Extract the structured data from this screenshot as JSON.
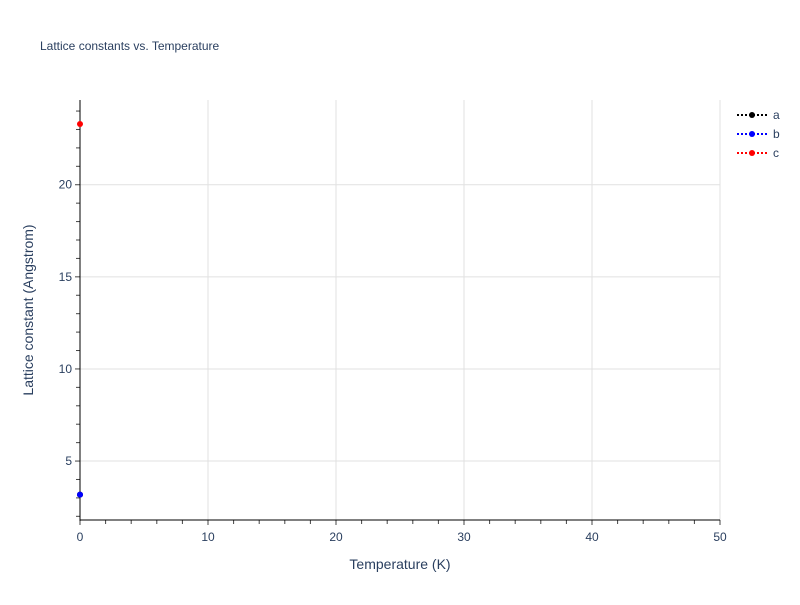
{
  "chart_data": {
    "type": "line",
    "title": "Lattice constants vs. Temperature",
    "xlabel": "Temperature (K)",
    "ylabel": "Lattice constant (Angstrom)",
    "xlim": [
      0,
      50
    ],
    "ylim": [
      1.8,
      24.6
    ],
    "xticks": [
      0,
      10,
      20,
      30,
      40,
      50
    ],
    "yticks": [
      5,
      10,
      15,
      20
    ],
    "grid": true,
    "legend_position": "top-right",
    "series": [
      {
        "name": "a",
        "color": "#000000",
        "x": [
          0
        ],
        "y": [
          3.18
        ]
      },
      {
        "name": "b",
        "color": "#0000ff",
        "x": [
          0
        ],
        "y": [
          3.18
        ]
      },
      {
        "name": "c",
        "color": "#ff0000",
        "x": [
          0
        ],
        "y": [
          23.3
        ]
      }
    ]
  }
}
